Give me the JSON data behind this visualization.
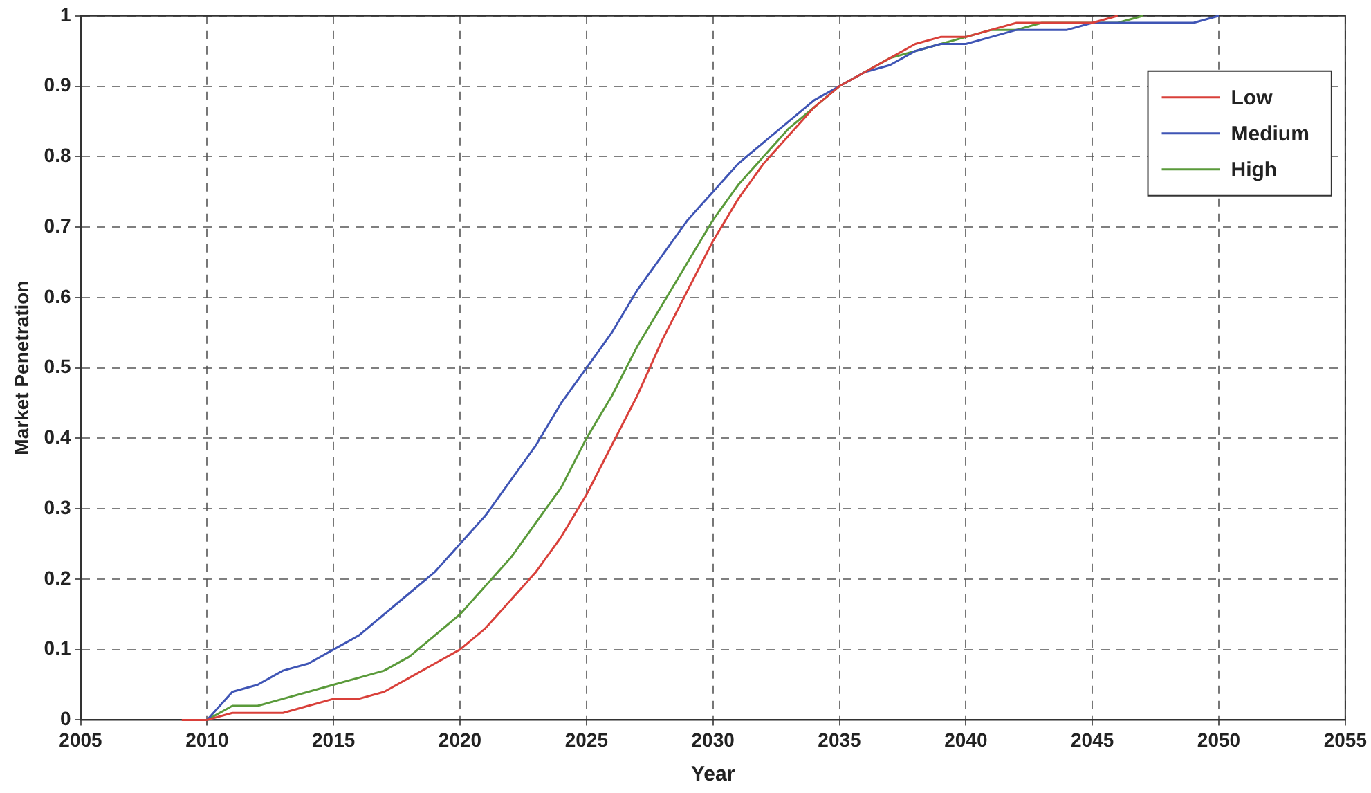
{
  "chart_data": {
    "type": "line",
    "xlabel": "Year",
    "ylabel": "Market Penetration",
    "x": [
      2009,
      2010,
      2011,
      2012,
      2013,
      2014,
      2015,
      2016,
      2017,
      2018,
      2019,
      2020,
      2021,
      2022,
      2023,
      2024,
      2025,
      2026,
      2027,
      2028,
      2029,
      2030,
      2031,
      2032,
      2033,
      2034,
      2035,
      2036,
      2037,
      2038,
      2039,
      2040,
      2041,
      2042,
      2043,
      2044,
      2045,
      2046
    ],
    "series": [
      {
        "name": "Low",
        "color": "#d9403a",
        "values": [
          0,
          0,
          0.01,
          0.01,
          0.01,
          0.02,
          0.03,
          0.03,
          0.04,
          0.06,
          0.08,
          0.1,
          0.13,
          0.17,
          0.21,
          0.26,
          0.32,
          0.39,
          0.46,
          0.54,
          0.61,
          0.68,
          0.74,
          0.79,
          0.83,
          0.87,
          0.9,
          0.92,
          0.94,
          0.96,
          0.97,
          0.97,
          0.98,
          0.99,
          0.99,
          0.99,
          0.99,
          1
        ]
      },
      {
        "name": "Medium",
        "color": "#3f55b5",
        "x": [
          2010,
          2011,
          2012,
          2013,
          2014,
          2015,
          2016,
          2017,
          2018,
          2019,
          2020,
          2021,
          2022,
          2023,
          2024,
          2025,
          2026,
          2027,
          2028,
          2029,
          2030,
          2031,
          2032,
          2033,
          2034,
          2035,
          2036,
          2037,
          2038,
          2039,
          2040,
          2041,
          2042,
          2043,
          2044,
          2045,
          2046,
          2047,
          2048,
          2049,
          2050
        ],
        "values": [
          0,
          0.04,
          0.05,
          0.07,
          0.08,
          0.1,
          0.12,
          0.15,
          0.18,
          0.21,
          0.25,
          0.29,
          0.34,
          0.39,
          0.45,
          0.5,
          0.55,
          0.61,
          0.66,
          0.71,
          0.75,
          0.79,
          0.82,
          0.85,
          0.88,
          0.9,
          0.92,
          0.93,
          0.95,
          0.96,
          0.96,
          0.97,
          0.98,
          0.98,
          0.98,
          0.99,
          0.99,
          0.99,
          0.99,
          0.99,
          1
        ]
      },
      {
        "name": "High",
        "color": "#5a9a3a",
        "x": [
          2010,
          2011,
          2012,
          2013,
          2014,
          2015,
          2016,
          2017,
          2018,
          2019,
          2020,
          2021,
          2022,
          2023,
          2024,
          2025,
          2026,
          2027,
          2028,
          2029,
          2030,
          2031,
          2032,
          2033,
          2034,
          2035,
          2036,
          2037,
          2038,
          2039,
          2040,
          2041,
          2042,
          2043,
          2044,
          2045,
          2046,
          2047
        ],
        "values": [
          0,
          0.02,
          0.02,
          0.03,
          0.04,
          0.05,
          0.06,
          0.07,
          0.09,
          0.12,
          0.15,
          0.19,
          0.23,
          0.28,
          0.33,
          0.4,
          0.46,
          0.53,
          0.59,
          0.65,
          0.71,
          0.76,
          0.8,
          0.84,
          0.87,
          0.9,
          0.92,
          0.94,
          0.95,
          0.96,
          0.97,
          0.98,
          0.98,
          0.99,
          0.99,
          0.99,
          0.99,
          1
        ]
      }
    ],
    "xlim": [
      2005,
      2055
    ],
    "xticks": [
      2005,
      2010,
      2015,
      2020,
      2025,
      2030,
      2035,
      2040,
      2045,
      2050,
      2055
    ],
    "ylim": [
      0,
      1
    ],
    "yticks": [
      0,
      0.1,
      0.2,
      0.3,
      0.4,
      0.5,
      0.6,
      0.7,
      0.8,
      0.9,
      1
    ],
    "grid": true,
    "legend": "top right",
    "marker": "none",
    "line_style": "solid"
  }
}
